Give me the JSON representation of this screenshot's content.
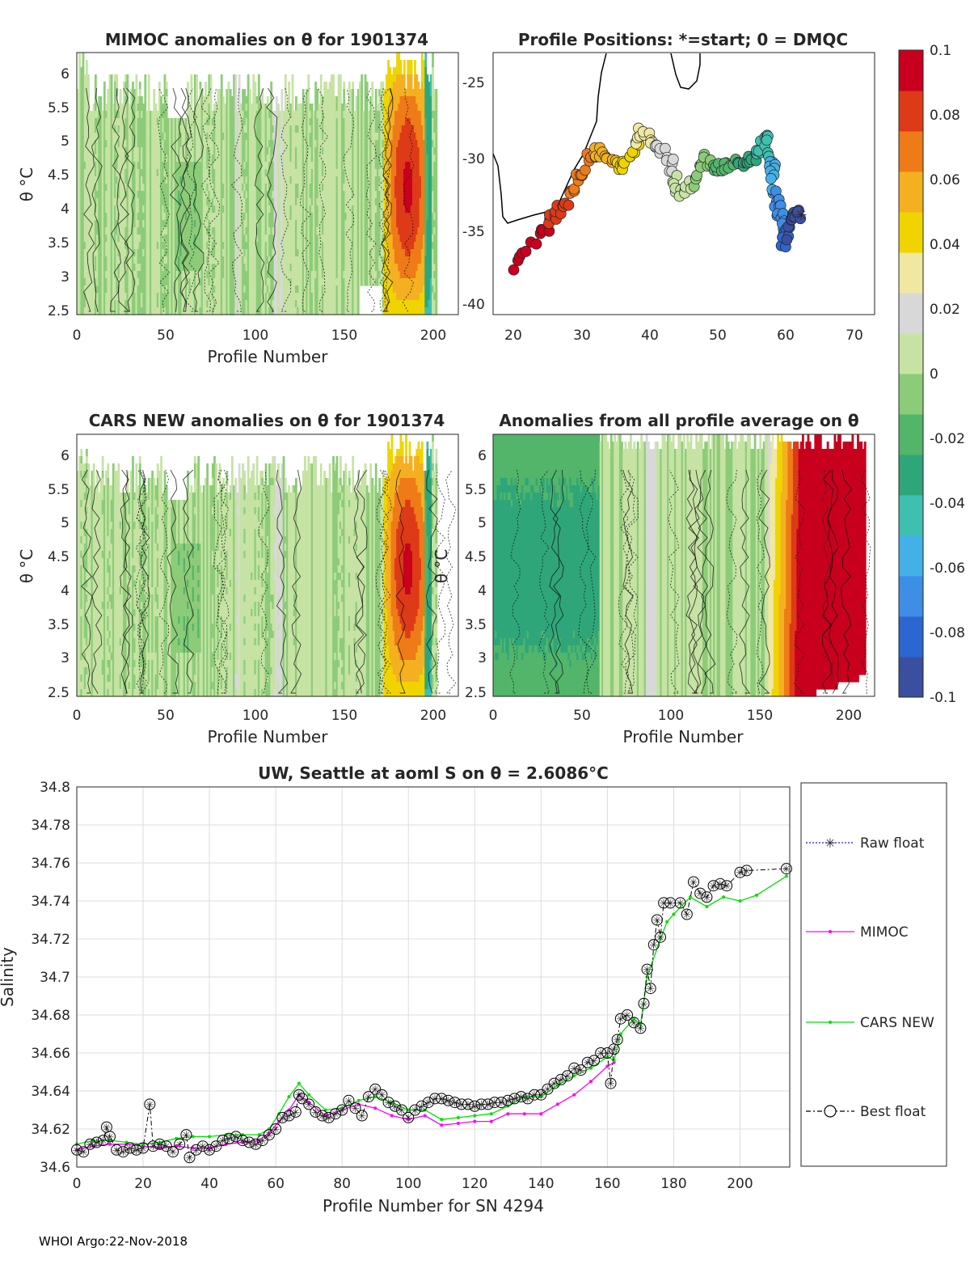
{
  "page": {
    "footer": "WHOI Argo:22-Nov-2018"
  },
  "colorbar": {
    "colors": [
      "#3a4fa0",
      "#2c66d0",
      "#3e8ee8",
      "#44b0e8",
      "#3fbfb0",
      "#2fa67a",
      "#52b56a",
      "#8ccc78",
      "#c6e3a4",
      "#d8d8d8",
      "#f0e8a0",
      "#f0d400",
      "#f4b020",
      "#ee7a18",
      "#dd3a18",
      "#c8001e"
    ],
    "ticks": [
      "-0.1",
      "-0.08",
      "-0.06",
      "-0.04",
      "-0.02",
      "0",
      "0.02",
      "0.04",
      "0.06",
      "0.08",
      "0.1"
    ]
  },
  "panels": {
    "mimoc": {
      "title": "MIMOC anomalies on θ  for 1901374",
      "xlabel": "Profile Number",
      "ylabel": "θ °C",
      "xticks": [
        "0",
        "50",
        "100",
        "150",
        "200"
      ],
      "yticks": [
        "2.5",
        "3",
        "3.5",
        "4",
        "4.5",
        "5",
        "5.5",
        "6"
      ]
    },
    "positions": {
      "title": "Profile Positions: *=start; 0 = DMQC",
      "xticks": [
        "20",
        "30",
        "40",
        "50",
        "60",
        "70"
      ],
      "yticks": [
        "-40",
        "-35",
        "-30",
        "-25"
      ]
    },
    "cars": {
      "title": "CARS NEW anomalies on θ for 1901374",
      "xlabel": "Profile Number",
      "ylabel": "θ °C",
      "xticks": [
        "0",
        "50",
        "100",
        "150",
        "200"
      ],
      "yticks": [
        "2.5",
        "3",
        "3.5",
        "4",
        "4.5",
        "5",
        "5.5",
        "6"
      ]
    },
    "average": {
      "title": "Anomalies from all profile average on θ",
      "xlabel": "Profile Number",
      "ylabel": "θ °C",
      "xticks": [
        "0",
        "50",
        "100",
        "150",
        "200"
      ],
      "yticks": [
        "2.5",
        "3",
        "3.5",
        "4",
        "4.5",
        "5",
        "5.5",
        "6"
      ]
    }
  },
  "chart_data": {
    "type": "line",
    "title": "UW, Seattle at aoml S on θ = 2.6086°C",
    "xlabel": "Profile Number for SN 4294",
    "ylabel": "Salinity",
    "xlim": [
      0,
      215
    ],
    "ylim": [
      34.6,
      34.8
    ],
    "xticks": [
      "0",
      "20",
      "40",
      "60",
      "80",
      "100",
      "120",
      "140",
      "160",
      "180",
      "200"
    ],
    "yticks": [
      "34.6",
      "34.62",
      "34.64",
      "34.66",
      "34.68",
      "34.7",
      "34.72",
      "34.74",
      "34.76",
      "34.78",
      "34.8"
    ],
    "legend": [
      "Raw float",
      "MIMOC",
      "CARS NEW",
      "Best float"
    ],
    "legend_position": "outside-right",
    "series": [
      {
        "name": "Best float",
        "color": "#000000",
        "points": [
          [
            0,
            34.609
          ],
          [
            2,
            34.608
          ],
          [
            4,
            34.612
          ],
          [
            6,
            34.613
          ],
          [
            8,
            34.614
          ],
          [
            9,
            34.621
          ],
          [
            10,
            34.616
          ],
          [
            12,
            34.609
          ],
          [
            14,
            34.608
          ],
          [
            16,
            34.61
          ],
          [
            18,
            34.609
          ],
          [
            20,
            34.61
          ],
          [
            22,
            34.633
          ],
          [
            23,
            34.611
          ],
          [
            25,
            34.612
          ],
          [
            27,
            34.611
          ],
          [
            29,
            34.608
          ],
          [
            31,
            34.612
          ],
          [
            33,
            34.617
          ],
          [
            34,
            34.605
          ],
          [
            36,
            34.609
          ],
          [
            38,
            34.611
          ],
          [
            40,
            34.609
          ],
          [
            42,
            34.611
          ],
          [
            44,
            34.614
          ],
          [
            46,
            34.615
          ],
          [
            48,
            34.616
          ],
          [
            50,
            34.614
          ],
          [
            52,
            34.613
          ],
          [
            54,
            34.612
          ],
          [
            56,
            34.614
          ],
          [
            58,
            34.617
          ],
          [
            60,
            34.62
          ],
          [
            62,
            34.626
          ],
          [
            64,
            34.627
          ],
          [
            66,
            34.629
          ],
          [
            67,
            34.638
          ],
          [
            68,
            34.636
          ],
          [
            70,
            34.633
          ],
          [
            72,
            34.629
          ],
          [
            74,
            34.627
          ],
          [
            76,
            34.626
          ],
          [
            78,
            34.628
          ],
          [
            80,
            34.63
          ],
          [
            82,
            34.635
          ],
          [
            84,
            34.631
          ],
          [
            86,
            34.627
          ],
          [
            88,
            34.637
          ],
          [
            90,
            34.641
          ],
          [
            92,
            34.638
          ],
          [
            94,
            34.634
          ],
          [
            96,
            34.632
          ],
          [
            98,
            34.63
          ],
          [
            100,
            34.626
          ],
          [
            102,
            34.63
          ],
          [
            104,
            34.632
          ],
          [
            106,
            34.634
          ],
          [
            108,
            34.636
          ],
          [
            110,
            34.636
          ],
          [
            112,
            34.635
          ],
          [
            114,
            34.634
          ],
          [
            116,
            34.633
          ],
          [
            118,
            34.633
          ],
          [
            120,
            34.632
          ],
          [
            122,
            34.633
          ],
          [
            124,
            34.633
          ],
          [
            126,
            34.634
          ],
          [
            128,
            34.634
          ],
          [
            130,
            34.635
          ],
          [
            132,
            34.636
          ],
          [
            134,
            34.637
          ],
          [
            136,
            34.636
          ],
          [
            138,
            34.638
          ],
          [
            140,
            34.638
          ],
          [
            142,
            34.641
          ],
          [
            144,
            34.644
          ],
          [
            146,
            34.646
          ],
          [
            148,
            34.648
          ],
          [
            150,
            34.652
          ],
          [
            152,
            34.651
          ],
          [
            154,
            34.655
          ],
          [
            156,
            34.656
          ],
          [
            158,
            34.66
          ],
          [
            160,
            34.66
          ],
          [
            161,
            34.644
          ],
          [
            162,
            34.662
          ],
          [
            163,
            34.667
          ],
          [
            164,
            34.678
          ],
          [
            166,
            34.68
          ],
          [
            168,
            34.676
          ],
          [
            170,
            34.673
          ],
          [
            171,
            34.686
          ],
          [
            172,
            34.704
          ],
          [
            173,
            34.694
          ],
          [
            174,
            34.717
          ],
          [
            175,
            34.73
          ],
          [
            176,
            34.721
          ],
          [
            177,
            34.739
          ],
          [
            179,
            34.739
          ],
          [
            182,
            34.739
          ],
          [
            184,
            34.733
          ],
          [
            186,
            34.75
          ],
          [
            188,
            34.744
          ],
          [
            190,
            34.742
          ],
          [
            192,
            34.748
          ],
          [
            194,
            34.749
          ],
          [
            196,
            34.748
          ],
          [
            200,
            34.755
          ],
          [
            202,
            34.756
          ],
          [
            214,
            34.757
          ]
        ]
      },
      {
        "name": "MIMOC",
        "color": "#ff00ff",
        "points": [
          [
            0,
            34.609
          ],
          [
            5,
            34.611
          ],
          [
            10,
            34.612
          ],
          [
            15,
            34.612
          ],
          [
            20,
            34.611
          ],
          [
            25,
            34.61
          ],
          [
            30,
            34.611
          ],
          [
            35,
            34.61
          ],
          [
            40,
            34.61
          ],
          [
            45,
            34.612
          ],
          [
            50,
            34.613
          ],
          [
            55,
            34.614
          ],
          [
            58,
            34.618
          ],
          [
            61,
            34.624
          ],
          [
            64,
            34.63
          ],
          [
            67,
            34.638
          ],
          [
            70,
            34.634
          ],
          [
            75,
            34.627
          ],
          [
            80,
            34.63
          ],
          [
            85,
            34.633
          ],
          [
            90,
            34.631
          ],
          [
            95,
            34.627
          ],
          [
            100,
            34.625
          ],
          [
            105,
            34.627
          ],
          [
            110,
            34.622
          ],
          [
            115,
            34.623
          ],
          [
            120,
            34.624
          ],
          [
            125,
            34.624
          ],
          [
            130,
            34.628
          ],
          [
            135,
            34.628
          ],
          [
            140,
            34.628
          ],
          [
            145,
            34.633
          ],
          [
            150,
            34.638
          ],
          [
            155,
            34.645
          ],
          [
            160,
            34.653
          ],
          [
            162,
            34.655
          ]
        ]
      },
      {
        "name": "CARS NEW",
        "color": "#00e000",
        "points": [
          [
            0,
            34.612
          ],
          [
            5,
            34.614
          ],
          [
            10,
            34.614
          ],
          [
            15,
            34.613
          ],
          [
            20,
            34.612
          ],
          [
            25,
            34.613
          ],
          [
            30,
            34.615
          ],
          [
            35,
            34.616
          ],
          [
            40,
            34.616
          ],
          [
            45,
            34.617
          ],
          [
            50,
            34.617
          ],
          [
            55,
            34.617
          ],
          [
            58,
            34.62
          ],
          [
            61,
            34.628
          ],
          [
            64,
            34.637
          ],
          [
            67,
            34.644
          ],
          [
            70,
            34.638
          ],
          [
            75,
            34.63
          ],
          [
            80,
            34.631
          ],
          [
            85,
            34.635
          ],
          [
            90,
            34.637
          ],
          [
            95,
            34.634
          ],
          [
            100,
            34.63
          ],
          [
            105,
            34.63
          ],
          [
            110,
            34.625
          ],
          [
            115,
            34.626
          ],
          [
            120,
            34.627
          ],
          [
            125,
            34.628
          ],
          [
            130,
            34.632
          ],
          [
            135,
            34.637
          ],
          [
            140,
            34.637
          ],
          [
            145,
            34.643
          ],
          [
            150,
            34.648
          ],
          [
            155,
            34.652
          ],
          [
            160,
            34.658
          ],
          [
            162,
            34.656
          ],
          [
            164,
            34.67
          ],
          [
            168,
            34.678
          ],
          [
            170,
            34.675
          ],
          [
            172,
            34.7
          ],
          [
            176,
            34.72
          ],
          [
            178,
            34.729
          ],
          [
            180,
            34.733
          ],
          [
            185,
            34.742
          ],
          [
            190,
            34.737
          ],
          [
            195,
            34.742
          ],
          [
            200,
            34.74
          ],
          [
            205,
            34.743
          ],
          [
            214,
            34.753
          ]
        ]
      }
    ]
  }
}
